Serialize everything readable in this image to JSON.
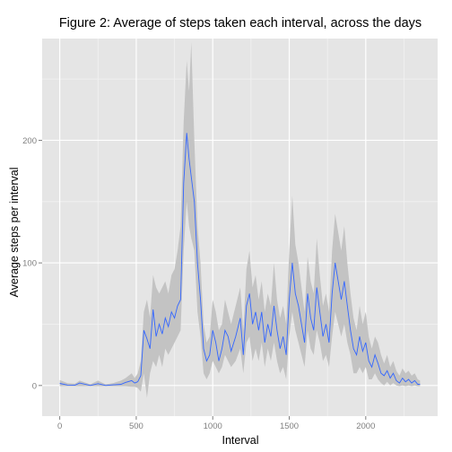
{
  "chart_data": {
    "type": "line",
    "title": "Figure 2: Average of steps taken each interval, across the days",
    "xlabel": "Interval",
    "ylabel": "Average steps per interval",
    "xlim": [
      -115,
      2470
    ],
    "ylim": [
      -25,
      283
    ],
    "x_ticks": [
      0,
      500,
      1000,
      1500,
      2000
    ],
    "y_ticks": [
      0,
      100,
      200
    ],
    "grid": true,
    "legend": "none",
    "colors": {
      "panel": "#e5e5e5",
      "grid_major": "#ffffff",
      "grid_minor": "#f2f2f2",
      "ribbon": "#c3c3c3",
      "line": "#3366ff"
    },
    "series": [
      {
        "values_note": "",
        "points": [
          [
            0,
            1.7,
            -0.5,
            4.5
          ],
          [
            50,
            0.4,
            -0.5,
            2
          ],
          [
            100,
            0.3,
            -0.5,
            1.5
          ],
          [
            130,
            2,
            -0.5,
            4
          ],
          [
            200,
            0,
            -0.5,
            1
          ],
          [
            250,
            1.5,
            -0.5,
            4
          ],
          [
            300,
            0,
            -0.5,
            1
          ],
          [
            350,
            0.5,
            -0.5,
            2
          ],
          [
            400,
            1,
            -0.5,
            4
          ],
          [
            430,
            2.5,
            -0.5,
            6
          ],
          [
            470,
            4,
            -1,
            10
          ],
          [
            490,
            2,
            -1,
            6
          ],
          [
            510,
            3,
            -2,
            10
          ],
          [
            530,
            8,
            -5,
            20
          ],
          [
            550,
            45,
            10,
            60
          ],
          [
            570,
            38,
            -10,
            70
          ],
          [
            590,
            30,
            10,
            55
          ],
          [
            610,
            62,
            20,
            90
          ],
          [
            630,
            40,
            15,
            80
          ],
          [
            650,
            50,
            25,
            75
          ],
          [
            670,
            42,
            15,
            80
          ],
          [
            690,
            55,
            30,
            85
          ],
          [
            710,
            48,
            25,
            75
          ],
          [
            730,
            60,
            30,
            90
          ],
          [
            750,
            55,
            35,
            95
          ],
          [
            770,
            65,
            40,
            110
          ],
          [
            790,
            70,
            45,
            130
          ],
          [
            810,
            165,
            110,
            215
          ],
          [
            830,
            206,
            150,
            265
          ],
          [
            845,
            185,
            130,
            240
          ],
          [
            860,
            170,
            120,
            280
          ],
          [
            880,
            150,
            110,
            200
          ],
          [
            900,
            100,
            60,
            130
          ],
          [
            920,
            70,
            40,
            100
          ],
          [
            940,
            30,
            10,
            50
          ],
          [
            960,
            20,
            5,
            35
          ],
          [
            980,
            25,
            10,
            40
          ],
          [
            1000,
            45,
            20,
            70
          ],
          [
            1020,
            35,
            15,
            60
          ],
          [
            1040,
            20,
            10,
            45
          ],
          [
            1060,
            30,
            15,
            50
          ],
          [
            1080,
            45,
            25,
            70
          ],
          [
            1100,
            40,
            20,
            60
          ],
          [
            1120,
            28,
            15,
            50
          ],
          [
            1150,
            40,
            20,
            65
          ],
          [
            1180,
            55,
            30,
            80
          ],
          [
            1200,
            25,
            10,
            45
          ],
          [
            1220,
            65,
            35,
            95
          ],
          [
            1240,
            75,
            40,
            110
          ],
          [
            1260,
            50,
            20,
            80
          ],
          [
            1280,
            60,
            30,
            90
          ],
          [
            1300,
            45,
            20,
            70
          ],
          [
            1320,
            60,
            35,
            85
          ],
          [
            1340,
            35,
            15,
            60
          ],
          [
            1360,
            50,
            30,
            75
          ],
          [
            1380,
            40,
            20,
            65
          ],
          [
            1400,
            65,
            35,
            100
          ],
          [
            1420,
            45,
            20,
            70
          ],
          [
            1440,
            30,
            10,
            55
          ],
          [
            1460,
            40,
            15,
            65
          ],
          [
            1480,
            25,
            5,
            50
          ],
          [
            1500,
            70,
            40,
            110
          ],
          [
            1520,
            100,
            60,
            155
          ],
          [
            1540,
            75,
            45,
            115
          ],
          [
            1560,
            65,
            35,
            100
          ],
          [
            1580,
            50,
            25,
            80
          ],
          [
            1600,
            35,
            15,
            60
          ],
          [
            1620,
            75,
            45,
            105
          ],
          [
            1640,
            55,
            30,
            85
          ],
          [
            1660,
            45,
            25,
            75
          ],
          [
            1680,
            80,
            45,
            120
          ],
          [
            1700,
            60,
            35,
            90
          ],
          [
            1720,
            40,
            20,
            65
          ],
          [
            1740,
            50,
            25,
            75
          ],
          [
            1760,
            35,
            15,
            60
          ],
          [
            1780,
            75,
            40,
            110
          ],
          [
            1800,
            100,
            60,
            140
          ],
          [
            1820,
            85,
            50,
            125
          ],
          [
            1840,
            70,
            40,
            110
          ],
          [
            1860,
            85,
            50,
            130
          ],
          [
            1880,
            65,
            35,
            100
          ],
          [
            1900,
            45,
            25,
            75
          ],
          [
            1920,
            30,
            10,
            55
          ],
          [
            1940,
            25,
            10,
            45
          ],
          [
            1960,
            40,
            15,
            65
          ],
          [
            1980,
            28,
            10,
            50
          ],
          [
            2000,
            35,
            15,
            60
          ],
          [
            2020,
            20,
            5,
            40
          ],
          [
            2040,
            15,
            5,
            30
          ],
          [
            2060,
            25,
            10,
            40
          ],
          [
            2080,
            18,
            5,
            35
          ],
          [
            2100,
            10,
            2,
            25
          ],
          [
            2120,
            8,
            0,
            18
          ],
          [
            2140,
            12,
            3,
            25
          ],
          [
            2160,
            6,
            0,
            15
          ],
          [
            2180,
            10,
            2,
            20
          ],
          [
            2200,
            4,
            0,
            12
          ],
          [
            2220,
            2,
            -0.5,
            8
          ],
          [
            2240,
            6,
            0,
            14
          ],
          [
            2260,
            3,
            -0.5,
            10
          ],
          [
            2280,
            5,
            0,
            12
          ],
          [
            2300,
            2,
            -0.5,
            8
          ],
          [
            2320,
            4,
            0,
            10
          ],
          [
            2340,
            1,
            -0.5,
            5
          ],
          [
            2355,
            1,
            -0.5,
            4
          ]
        ]
      }
    ]
  }
}
